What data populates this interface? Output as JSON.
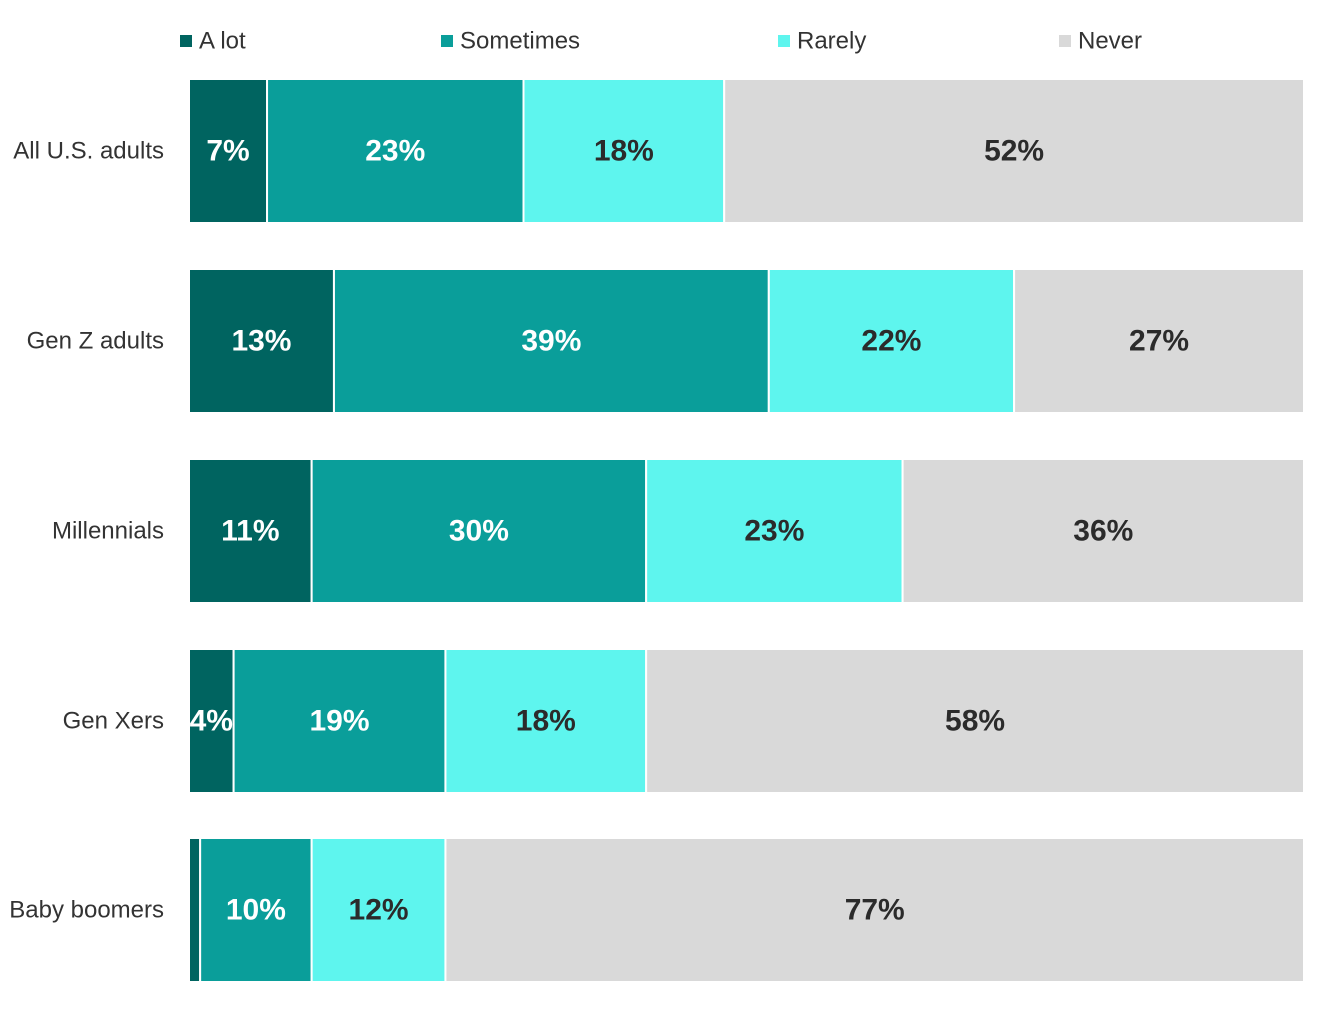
{
  "chart_data": {
    "type": "bar",
    "orientation": "horizontal",
    "stacked": true,
    "categories": [
      "All U.S. adults",
      "Gen Z adults",
      "Millennials",
      "Gen Xers",
      "Baby boomers"
    ],
    "series": [
      {
        "name": "A lot",
        "values": [
          7,
          13,
          11,
          4,
          1
        ],
        "labels": [
          "7%",
          "13%",
          "11%",
          "4%",
          ""
        ],
        "color": "#006460",
        "label_color": "#ffffff"
      },
      {
        "name": "Sometimes",
        "values": [
          23,
          39,
          30,
          19,
          10
        ],
        "labels": [
          "23%",
          "39%",
          "30%",
          "19%",
          "10%"
        ],
        "color": "#0a9e9a",
        "label_color": "#ffffff"
      },
      {
        "name": "Rarely",
        "values": [
          18,
          22,
          23,
          18,
          12
        ],
        "labels": [
          "18%",
          "22%",
          "23%",
          "18%",
          "12%"
        ],
        "color": "#5ef5ee",
        "label_color": "#2b2b2b"
      },
      {
        "name": "Never",
        "values": [
          52,
          27,
          36,
          58,
          77
        ],
        "labels": [
          "52%",
          "27%",
          "36%",
          "58%",
          "77%"
        ],
        "color": "#d9d9d9",
        "label_color": "#2b2b2b"
      }
    ],
    "xlim": [
      0,
      100
    ],
    "legend_position": "top",
    "grid": false
  }
}
